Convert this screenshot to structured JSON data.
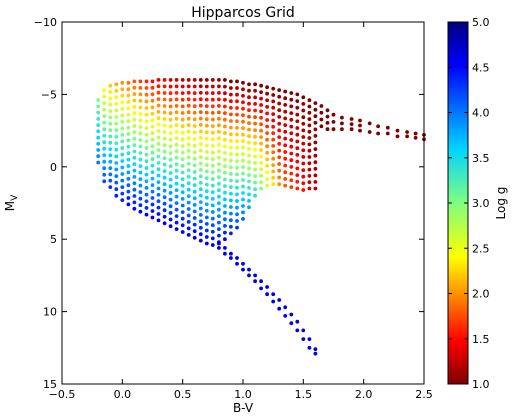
{
  "chart_data": {
    "type": "scatter",
    "title": "Hipparcos Grid",
    "xlabel": "B-V",
    "ylabel": "M",
    "ylabel_subscript": "V",
    "xlim": [
      -0.5,
      2.5
    ],
    "ylim": [
      15,
      -10
    ],
    "y_inverted": true,
    "grid": false,
    "x_ticks": [
      -0.5,
      0.0,
      0.5,
      1.0,
      1.5,
      2.0,
      2.5
    ],
    "x_tick_labels": [
      "−0.5",
      "0.0",
      "0.5",
      "1.0",
      "1.5",
      "2.0",
      "2.5"
    ],
    "y_ticks": [
      -10,
      -5,
      0,
      5,
      10,
      15
    ],
    "y_tick_labels": [
      "−10",
      "−5",
      "0",
      "5",
      "10",
      "15"
    ],
    "colorbar": {
      "label": "Log g",
      "range": [
        1.0,
        5.0
      ],
      "ticks": [
        1.0,
        1.5,
        2.0,
        2.5,
        3.0,
        3.5,
        4.0,
        4.5,
        5.0
      ],
      "tick_labels": [
        "1.0",
        "1.5",
        "2.0",
        "2.5",
        "3.0",
        "3.5",
        "4.0",
        "4.5",
        "5.0"
      ],
      "colormap": "jet_r"
    },
    "grid_columns": [
      {
        "bv": -0.2,
        "mv_top": -4.6,
        "mv_bottom": -0.3,
        "logg_top": 3.0,
        "logg_bottom": 4.0
      },
      {
        "bv": -0.15,
        "mv_top": -5.3,
        "mv_bottom": 1.0,
        "logg_top": 2.4,
        "logg_bottom": 4.2
      },
      {
        "bv": -0.1,
        "mv_top": -5.6,
        "mv_bottom": 1.4,
        "logg_top": 2.2,
        "logg_bottom": 4.3
      },
      {
        "bv": -0.05,
        "mv_top": -5.7,
        "mv_bottom": 2.0,
        "logg_top": 2.1,
        "logg_bottom": 4.4
      },
      {
        "bv": 0.0,
        "mv_top": -5.8,
        "mv_bottom": 2.3,
        "logg_top": 2.0,
        "logg_bottom": 4.4
      },
      {
        "bv": 0.05,
        "mv_top": -5.8,
        "mv_bottom": 2.6,
        "logg_top": 1.9,
        "logg_bottom": 4.5
      },
      {
        "bv": 0.1,
        "mv_top": -5.9,
        "mv_bottom": 2.9,
        "logg_top": 1.8,
        "logg_bottom": 4.5
      },
      {
        "bv": 0.15,
        "mv_top": -5.9,
        "mv_bottom": 3.1,
        "logg_top": 1.7,
        "logg_bottom": 4.5
      },
      {
        "bv": 0.2,
        "mv_top": -5.9,
        "mv_bottom": 3.3,
        "logg_top": 1.6,
        "logg_bottom": 4.5
      },
      {
        "bv": 0.25,
        "mv_top": -5.9,
        "mv_bottom": 3.5,
        "logg_top": 1.5,
        "logg_bottom": 4.6
      },
      {
        "bv": 0.3,
        "mv_top": -6.0,
        "mv_bottom": 3.7,
        "logg_top": 1.4,
        "logg_bottom": 4.6
      },
      {
        "bv": 0.35,
        "mv_top": -6.0,
        "mv_bottom": 3.9,
        "logg_top": 1.4,
        "logg_bottom": 4.6
      },
      {
        "bv": 0.4,
        "mv_top": -6.0,
        "mv_bottom": 4.1,
        "logg_top": 1.3,
        "logg_bottom": 4.6
      },
      {
        "bv": 0.45,
        "mv_top": -6.0,
        "mv_bottom": 4.3,
        "logg_top": 1.3,
        "logg_bottom": 4.6
      },
      {
        "bv": 0.5,
        "mv_top": -6.0,
        "mv_bottom": 4.5,
        "logg_top": 1.2,
        "logg_bottom": 4.6
      },
      {
        "bv": 0.55,
        "mv_top": -6.0,
        "mv_bottom": 4.7,
        "logg_top": 1.2,
        "logg_bottom": 4.6
      },
      {
        "bv": 0.6,
        "mv_top": -6.0,
        "mv_bottom": 4.9,
        "logg_top": 1.2,
        "logg_bottom": 4.6
      },
      {
        "bv": 0.65,
        "mv_top": -6.0,
        "mv_bottom": 5.1,
        "logg_top": 1.1,
        "logg_bottom": 4.6
      },
      {
        "bv": 0.7,
        "mv_top": -6.0,
        "mv_bottom": 5.3,
        "logg_top": 1.1,
        "logg_bottom": 4.6
      },
      {
        "bv": 0.75,
        "mv_top": -6.0,
        "mv_bottom": 5.4,
        "logg_top": 1.1,
        "logg_bottom": 4.6
      },
      {
        "bv": 0.8,
        "mv_top": -6.0,
        "mv_bottom": 5.2,
        "logg_top": 1.1,
        "logg_bottom": 4.5
      },
      {
        "bv": 0.85,
        "mv_top": -6.0,
        "mv_bottom": 5.0,
        "logg_top": 1.0,
        "logg_bottom": 4.5
      },
      {
        "bv": 0.9,
        "mv_top": -5.9,
        "mv_bottom": 4.6,
        "logg_top": 1.0,
        "logg_bottom": 4.4
      },
      {
        "bv": 0.95,
        "mv_top": -5.9,
        "mv_bottom": 4.2,
        "logg_top": 1.0,
        "logg_bottom": 4.3
      },
      {
        "bv": 1.0,
        "mv_top": -5.8,
        "mv_bottom": 3.6,
        "logg_top": 1.0,
        "logg_bottom": 4.1
      },
      {
        "bv": 1.05,
        "mv_top": -5.7,
        "mv_bottom": 2.8,
        "logg_top": 1.0,
        "logg_bottom": 3.8
      },
      {
        "bv": 1.1,
        "mv_top": -5.7,
        "mv_bottom": 2.0,
        "logg_top": 1.0,
        "logg_bottom": 3.4
      },
      {
        "bv": 1.15,
        "mv_top": -5.6,
        "mv_bottom": 1.5,
        "logg_top": 1.0,
        "logg_bottom": 3.0
      },
      {
        "bv": 1.2,
        "mv_top": -5.5,
        "mv_bottom": 1.3,
        "logg_top": 1.0,
        "logg_bottom": 2.6
      },
      {
        "bv": 1.25,
        "mv_top": -5.4,
        "mv_bottom": 1.2,
        "logg_top": 1.0,
        "logg_bottom": 2.3
      },
      {
        "bv": 1.3,
        "mv_top": -5.3,
        "mv_bottom": 1.2,
        "logg_top": 1.0,
        "logg_bottom": 2.0
      },
      {
        "bv": 1.35,
        "mv_top": -5.2,
        "mv_bottom": 1.3,
        "logg_top": 1.0,
        "logg_bottom": 1.8
      },
      {
        "bv": 1.4,
        "mv_top": -5.1,
        "mv_bottom": 1.4,
        "logg_top": 1.0,
        "logg_bottom": 1.7
      },
      {
        "bv": 1.45,
        "mv_top": -5.0,
        "mv_bottom": 1.5,
        "logg_top": 1.0,
        "logg_bottom": 1.6
      },
      {
        "bv": 1.5,
        "mv_top": -4.8,
        "mv_bottom": 1.6,
        "logg_top": 1.0,
        "logg_bottom": 1.5
      },
      {
        "bv": 1.55,
        "mv_top": -4.6,
        "mv_bottom": 1.5,
        "logg_top": 1.0,
        "logg_bottom": 1.3
      },
      {
        "bv": 1.6,
        "mv_top": -4.4,
        "mv_bottom": 1.5,
        "logg_top": 1.0,
        "logg_bottom": 1.2
      }
    ],
    "giant_branch_tail": {
      "x": [
        1.65,
        1.7,
        1.75,
        1.82,
        1.9,
        1.97,
        2.05,
        2.12,
        2.2,
        2.28,
        2.36,
        2.43,
        2.5
      ],
      "y_top": [
        -4.2,
        -3.9,
        -3.6,
        -3.4,
        -3.3,
        -3.2,
        -3.0,
        -2.8,
        -2.7,
        -2.5,
        -2.4,
        -2.3,
        -2.2
      ],
      "y_bottom": [
        -2.8,
        -2.6,
        -2.6,
        -2.6,
        -2.6,
        -2.5,
        -2.4,
        -2.3,
        -2.3,
        -2.1,
        -2.1,
        -2.0,
        -1.9
      ],
      "log_g": 1.0
    },
    "lower_main_sequence": {
      "x": [
        0.8,
        0.85,
        0.9,
        0.95,
        1.0,
        1.05,
        1.1,
        1.15,
        1.2,
        1.25,
        1.3,
        1.35,
        1.4,
        1.45,
        1.5,
        1.55,
        1.6
      ],
      "y_top": [
        5.3,
        5.6,
        6.0,
        6.3,
        6.7,
        7.1,
        7.5,
        7.9,
        8.3,
        8.8,
        9.2,
        9.7,
        10.2,
        10.7,
        11.3,
        11.9,
        12.6
      ],
      "y_bottom": [
        5.6,
        6.0,
        6.3,
        6.7,
        7.1,
        7.5,
        7.9,
        8.4,
        8.8,
        9.3,
        9.8,
        10.3,
        10.8,
        11.3,
        11.9,
        12.5,
        12.9
      ],
      "log_g": 4.6
    }
  }
}
